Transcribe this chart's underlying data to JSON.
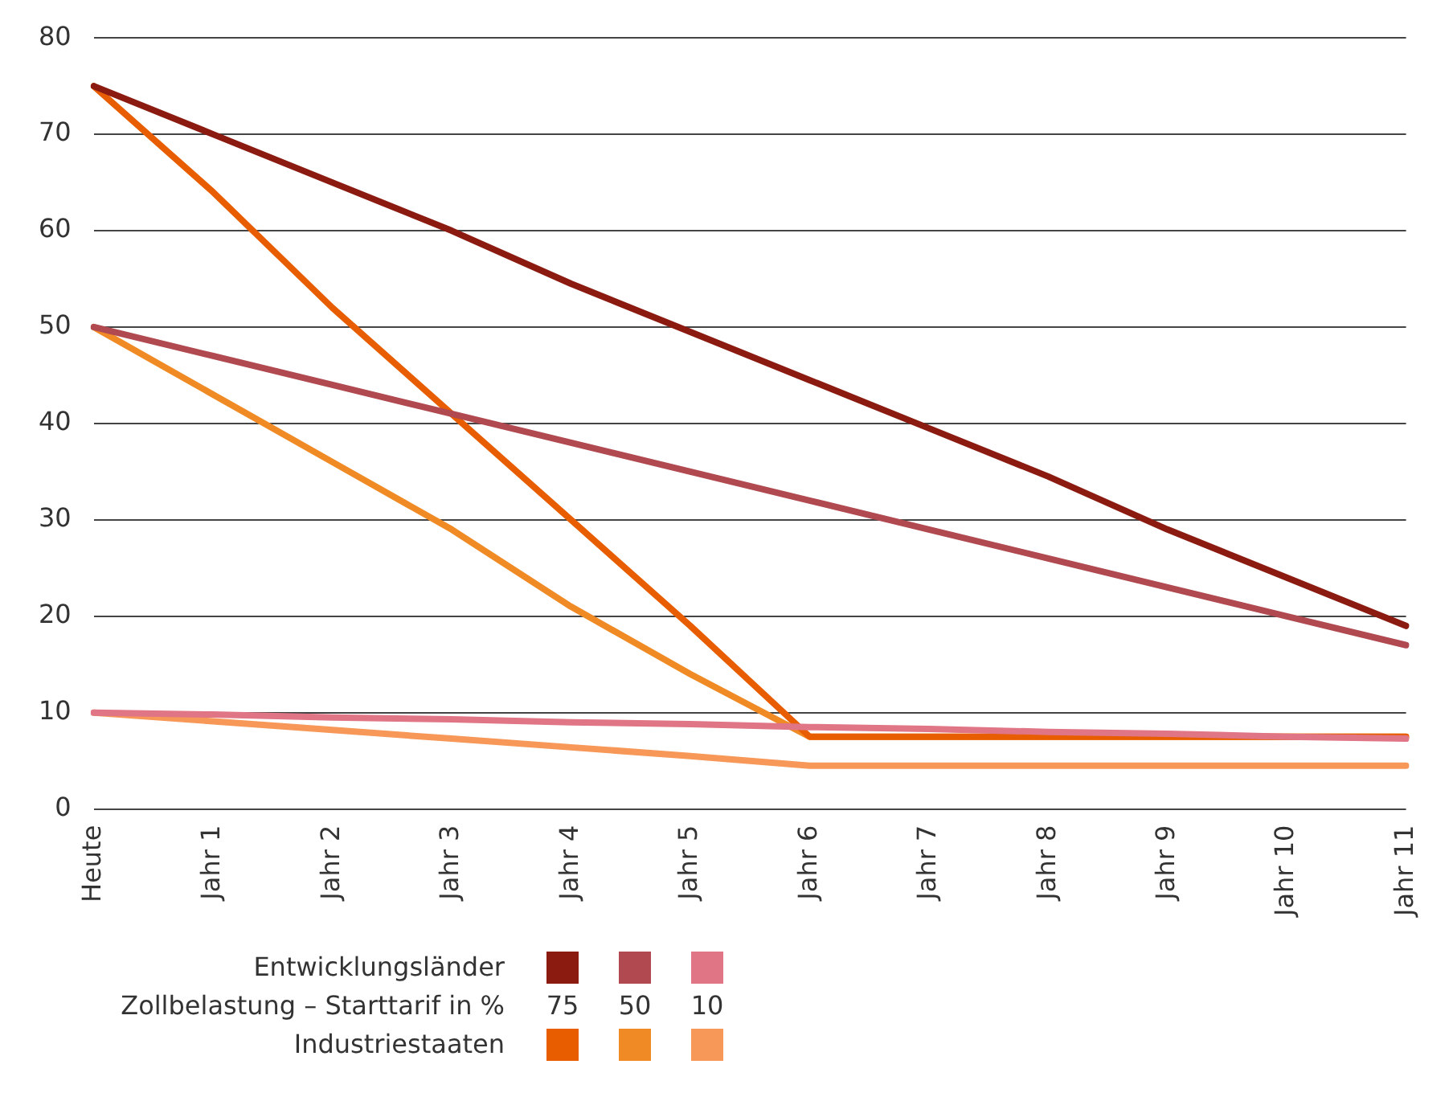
{
  "chart_data": {
    "type": "line",
    "categories": [
      "Heute",
      "Jahr 1",
      "Jahr 2",
      "Jahr 3",
      "Jahr 4",
      "Jahr 5",
      "Jahr 6",
      "Jahr 7",
      "Jahr 8",
      "Jahr 9",
      "Jahr 10",
      "Jahr 11"
    ],
    "series": [
      {
        "color": "#8b1a10",
        "values": [
          75,
          70,
          65,
          60,
          54.5,
          49.5,
          44.5,
          39.5,
          34.5,
          29,
          24,
          19
        ]
      },
      {
        "color": "#b04a50",
        "values": [
          50,
          47,
          44,
          41,
          38,
          35,
          32,
          29,
          26,
          23,
          20,
          17
        ]
      },
      {
        "color": "#e07585",
        "values": [
          10,
          9.8,
          9.5,
          9.3,
          9,
          8.8,
          8.5,
          8.3,
          8,
          7.8,
          7.5,
          7.3
        ]
      },
      {
        "color": "#e85d00",
        "values": [
          75,
          64,
          52,
          41,
          30,
          19,
          7.5,
          7.5,
          7.5,
          7.5,
          7.5,
          7.5
        ]
      },
      {
        "color": "#f08a24",
        "values": [
          50,
          43,
          36,
          29,
          21,
          14,
          7.5,
          7.5,
          7.5,
          7.5,
          7.5,
          7.5
        ]
      },
      {
        "color": "#f89858",
        "values": [
          10,
          9.1,
          8.2,
          7.3,
          6.4,
          5.5,
          4.5,
          4.5,
          4.5,
          4.5,
          4.5,
          4.5
        ]
      }
    ],
    "ylim": [
      0,
      80
    ],
    "yticks": [
      0,
      10,
      20,
      30,
      40,
      50,
      60,
      70,
      80
    ],
    "grid": "y",
    "marker": "none",
    "line_style": "solid",
    "annotations": [
      "Entwicklungsländer",
      "Zollbelastung – Starttarif in %",
      "75",
      "50",
      "10",
      "Industriestaaten"
    ]
  }
}
